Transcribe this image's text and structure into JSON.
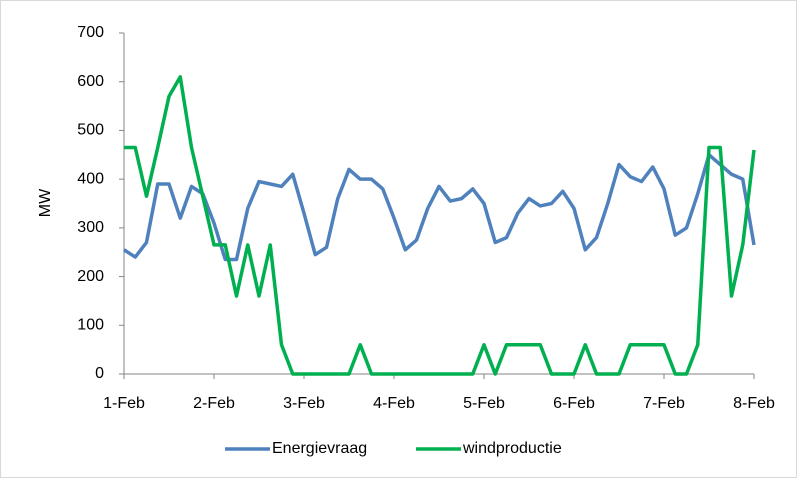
{
  "chart_data": {
    "type": "line",
    "y_label": "MW",
    "x": [
      1,
      1.125,
      1.25,
      1.375,
      1.5,
      1.625,
      1.75,
      1.875,
      2,
      2.125,
      2.25,
      2.375,
      2.5,
      2.625,
      2.75,
      2.875,
      3,
      3.125,
      3.25,
      3.375,
      3.5,
      3.625,
      3.75,
      3.875,
      4,
      4.125,
      4.25,
      4.375,
      4.5,
      4.625,
      4.75,
      4.875,
      5,
      5.125,
      5.25,
      5.375,
      5.5,
      5.625,
      5.75,
      5.875,
      6,
      6.125,
      6.25,
      6.375,
      6.5,
      6.625,
      6.75,
      6.875,
      7,
      7.125,
      7.25,
      7.375,
      7.5,
      7.625,
      7.75,
      7.875,
      8
    ],
    "series": [
      {
        "name": "Energievraag",
        "color": "#4f81bd",
        "values": [
          255,
          240,
          270,
          390,
          390,
          320,
          385,
          370,
          310,
          235,
          235,
          340,
          395,
          390,
          385,
          410,
          330,
          245,
          260,
          360,
          420,
          400,
          400,
          380,
          320,
          255,
          275,
          340,
          385,
          355,
          360,
          380,
          350,
          270,
          280,
          330,
          360,
          345,
          350,
          375,
          340,
          255,
          280,
          350,
          430,
          405,
          395,
          425,
          380,
          285,
          300,
          370,
          450,
          430,
          410,
          400,
          265
        ]
      },
      {
        "name": "windproductie",
        "color": "#00b050",
        "values": [
          465,
          465,
          365,
          465,
          570,
          610,
          465,
          365,
          265,
          265,
          160,
          265,
          160,
          265,
          60,
          0,
          0,
          0,
          0,
          0,
          0,
          60,
          0,
          0,
          0,
          0,
          0,
          0,
          0,
          0,
          0,
          0,
          60,
          0,
          60,
          60,
          60,
          60,
          0,
          0,
          0,
          60,
          0,
          0,
          0,
          60,
          60,
          60,
          60,
          0,
          0,
          60,
          465,
          465,
          160,
          265,
          460
        ]
      }
    ],
    "xlim": [
      1,
      8
    ],
    "xticks": [
      {
        "value": 1,
        "label": "1-Feb"
      },
      {
        "value": 2,
        "label": "2-Feb"
      },
      {
        "value": 3,
        "label": "3-Feb"
      },
      {
        "value": 4,
        "label": "4-Feb"
      },
      {
        "value": 5,
        "label": "5-Feb"
      },
      {
        "value": 6,
        "label": "6-Feb"
      },
      {
        "value": 7,
        "label": "7-Feb"
      },
      {
        "value": 8,
        "label": "8-Feb"
      }
    ],
    "ylim": [
      0,
      700
    ],
    "yticks": [
      0,
      100,
      200,
      300,
      400,
      500,
      600,
      700
    ],
    "grid": false,
    "legend": "bottom"
  }
}
